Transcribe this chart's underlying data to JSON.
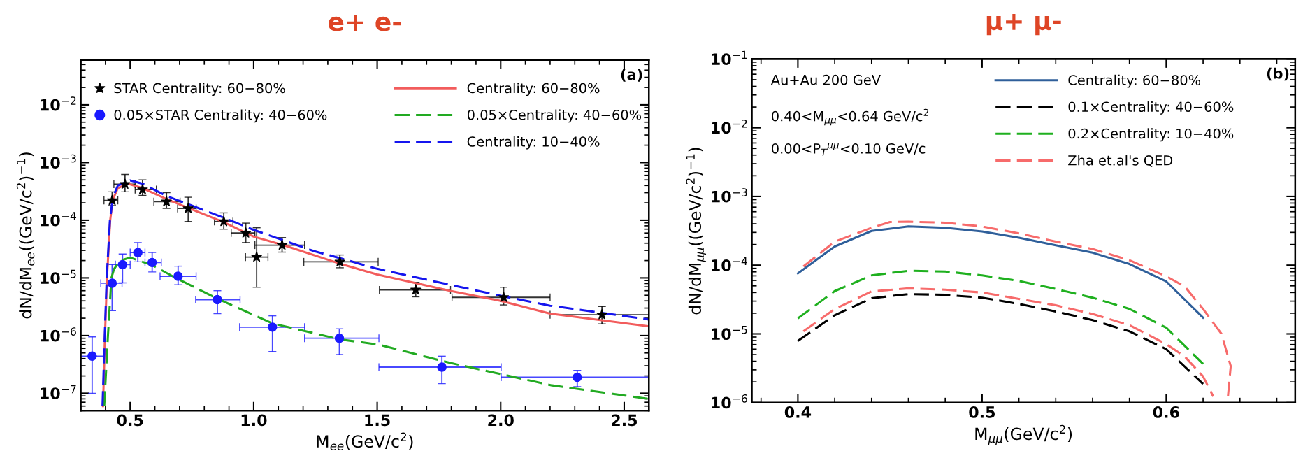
{
  "chart_data": [
    {
      "type": "line",
      "title": "e+ e-",
      "xlabel": "M$_{ee}$(GeV/c$^{2}$)",
      "ylabel": "dN/dM$_{ee}$((GeV/c$^{2}$)$^{−1}$)",
      "log": "y",
      "legend": "top",
      "xlim": [
        0.3,
        2.6
      ],
      "ylim": [
        5e-08,
        0.06
      ],
      "xticks": [
        {
          "value": 0.3,
          "label": null
        },
        {
          "value": 0.4,
          "label": null
        },
        0.5,
        {
          "value": 0.6,
          "label": null
        },
        {
          "value": 0.7,
          "label": null
        },
        {
          "value": 0.8,
          "label": null
        },
        {
          "value": 0.9,
          "label": null
        },
        {
          "value": 1.0,
          "label": "1.0"
        },
        {
          "value": 1.1,
          "label": null
        },
        {
          "value": 1.2,
          "label": null
        },
        {
          "value": 1.3,
          "label": null
        },
        {
          "value": 1.4,
          "label": null
        },
        1.5,
        {
          "value": 1.6,
          "label": null
        },
        {
          "value": 1.7,
          "label": null
        },
        {
          "value": 1.8,
          "label": null
        },
        {
          "value": 1.9,
          "label": null
        },
        {
          "value": 2.0,
          "label": "2.0"
        },
        {
          "value": 2.1,
          "label": null
        },
        {
          "value": 2.2,
          "label": null
        },
        {
          "value": 2.3,
          "label": null
        },
        {
          "value": 2.4,
          "label": null
        },
        2.5,
        {
          "value": 2.6,
          "label": null
        }
      ],
      "yticks": [
        {
          "value": 1e-07,
          "label": "10$^{−7}$"
        },
        {
          "value": 1e-06,
          "label": "10$^{−6}$"
        },
        {
          "value": 1e-05,
          "label": "10$^{−5}$"
        },
        {
          "value": 0.0001,
          "label": "10$^{−4}$"
        },
        {
          "value": 0.001,
          "label": "10$^{−3}$"
        },
        {
          "value": 0.01,
          "label": "10$^{−2}$"
        }
      ],
      "annotations": [
        "(a)"
      ],
      "series": [
        {
          "name": "STAR Centrality: 60−80%",
          "type": "scatter",
          "marker": "star",
          "color": "#000000",
          "x": [
            0.427,
            0.479,
            0.55,
            0.647,
            0.735,
            0.879,
            0.968,
            1.012,
            1.115,
            1.349,
            1.656,
            2.012,
            2.41
          ],
          "values": [
            0.00022,
            0.00042,
            0.00034,
            0.00021,
            0.00016,
            9.5e-05,
            6e-05,
            2.3e-05,
            3.7e-05,
            1.9e-05,
            6.2e-06,
            4.6e-06,
            2.3e-06
          ],
          "errors": [
            [
              0.00018,
              0.00031
            ],
            [
              0.00031,
              0.00062
            ],
            [
              0.00027,
              0.0005
            ],
            [
              0.00016,
              0.0003
            ],
            [
              9.5e-05,
              0.00025
            ],
            [
              7e-05,
              0.000134
            ],
            [
              4.1e-05,
              8.9e-05
            ],
            [
              6.9e-06,
              7.4e-05
            ],
            [
              2.8e-05,
              5e-05
            ],
            [
              1.5e-05,
              2.5e-05
            ],
            [
              4.7e-06,
              8.4e-06
            ],
            [
              3.4e-06,
              6.9e-06
            ],
            [
              1.6e-06,
              3.2e-06
            ]
          ],
          "xerrors": [
            [
              0.394,
              0.45
            ],
            [
              0.434,
              0.52
            ],
            [
              0.52,
              0.606
            ],
            [
              0.596,
              0.702
            ],
            [
              0.692,
              0.767
            ],
            [
              0.841,
              0.916
            ],
            [
              0.909,
              1.005
            ],
            [
              0.967,
              1.058
            ],
            [
              1.005,
              1.206
            ],
            [
              1.203,
              1.504
            ],
            [
              1.509,
              1.797
            ],
            [
              1.803,
              2.2
            ],
            [
              2.2,
              2.6
            ]
          ]
        },
        {
          "name": "0.05×STAR Centrality: 40−60%",
          "type": "scatter",
          "marker": "circle",
          "color": "#1a1aff",
          "x": [
            0.346,
            0.427,
            0.469,
            0.531,
            0.589,
            0.694,
            0.853,
            1.076,
            1.347,
            1.762,
            2.31
          ],
          "values": [
            4.4e-07,
            8.1e-06,
            1.7e-05,
            2.75e-05,
            1.85e-05,
            1.07e-05,
            4.2e-06,
            1.4e-06,
            9e-07,
            2.84e-07,
            1.9e-07
          ],
          "errors": [
            [
              1e-07,
              9.5e-07
            ],
            [
              2.7e-06,
              1.7e-05
            ],
            [
              8.2e-06,
              2.6e-05
            ],
            [
              1.9e-05,
              4.1e-05
            ],
            [
              1.27e-05,
              2.75e-05
            ],
            [
              7.6e-06,
              1.6e-05
            ],
            [
              2.4e-06,
              6e-06
            ],
            [
              5.3e-07,
              2.2e-06
            ],
            [
              4.7e-07,
              1.31e-06
            ],
            [
              1.47e-07,
              4.4e-07
            ],
            [
              1.3e-07,
              2.5e-07
            ]
          ],
          "xerrors": [
            [
              0.3,
              0.394
            ],
            [
              0.381,
              0.467
            ],
            [
              0.44,
              0.5
            ],
            [
              0.5,
              0.56
            ],
            [
              0.56,
              0.626
            ],
            [
              0.621,
              0.767
            ],
            [
              0.765,
              0.945
            ],
            [
              0.943,
              1.206
            ],
            [
              1.206,
              1.507
            ],
            [
              1.507,
              2.002
            ],
            [
              2.002,
              2.6
            ]
          ]
        },
        {
          "name": "Centrality: 60−80%",
          "line_style": "solid",
          "color": "#f25c5c",
          "x": [
            0.39,
            0.398,
            0.406,
            0.419,
            0.43,
            0.45,
            0.49,
            0.55,
            0.65,
            0.74,
            0.88,
            1.0,
            1.12,
            1.35,
            1.5,
            1.8,
            2.0,
            2.2,
            2.6
          ],
          "values": [
            6e-08,
            1e-06,
            1e-05,
            0.0001,
            0.00023,
            0.00036,
            0.00043,
            0.00036,
            0.00023,
            0.00016,
            9.2e-05,
            5.2e-05,
            3.7e-05,
            1.76e-05,
            1.15e-05,
            5.9e-06,
            4e-06,
            2.4e-06,
            1.45e-06
          ]
        },
        {
          "name": "0.05×Centrality: 40−60%",
          "line_style": "dashed",
          "color": "#22aa22",
          "x": [
            0.395,
            0.41,
            0.424,
            0.435,
            0.46,
            0.5,
            0.589,
            0.69,
            0.852,
            1.075,
            1.349,
            1.504,
            1.797,
            2.0,
            2.208,
            2.6
          ],
          "values": [
            6e-08,
            1e-06,
            1e-05,
            1.44e-05,
            2e-05,
            2.25e-05,
            1.67e-05,
            9.7e-06,
            4.4e-06,
            1.63e-06,
            8.6e-07,
            7e-07,
            3.35e-07,
            2.15e-07,
            1.37e-07,
            8e-08
          ]
        },
        {
          "name": "Centrality: 10−40%",
          "line_style": "dashed",
          "color": "#1515ee",
          "x": [
            0.388,
            0.397,
            0.405,
            0.418,
            0.43,
            0.45,
            0.5,
            0.55,
            0.65,
            0.88,
            1.0,
            1.246,
            1.35,
            1.5,
            1.8,
            2.0,
            2.2,
            2.6
          ],
          "values": [
            6e-08,
            1e-06,
            1e-05,
            0.0001,
            0.00025,
            0.0004,
            0.00049,
            0.00043,
            0.00026,
            0.00011,
            6.8e-05,
            2.9e-05,
            2.2e-05,
            1.44e-05,
            7.5e-06,
            4.9e-06,
            3.3e-06,
            1.9e-06
          ]
        }
      ]
    },
    {
      "type": "line",
      "title": "μ+ μ-",
      "xlabel": "M$_{μμ}$(GeV/c$^{2}$)",
      "ylabel": "dN/dM$_{μμ}$((GeV/c$^{2}$)$^{−1}$)",
      "log": "y",
      "legend": "top right",
      "xlim": [
        0.375,
        0.67
      ],
      "ylim": [
        1e-06,
        0.1
      ],
      "xticks": [
        {
          "value": 0.38,
          "label": null
        },
        0.4,
        {
          "value": 0.42,
          "label": null
        },
        {
          "value": 0.44,
          "label": null
        },
        {
          "value": 0.46,
          "label": null
        },
        {
          "value": 0.48,
          "label": null
        },
        0.5,
        {
          "value": 0.52,
          "label": null
        },
        {
          "value": 0.54,
          "label": null
        },
        {
          "value": 0.56,
          "label": null
        },
        {
          "value": 0.58,
          "label": null
        },
        0.6,
        {
          "value": 0.62,
          "label": null
        },
        {
          "value": 0.64,
          "label": null
        },
        {
          "value": 0.66,
          "label": null
        }
      ],
      "yticks": [
        {
          "value": 1e-06,
          "label": "10$^{−6}$"
        },
        {
          "value": 1e-05,
          "label": "10$^{−5}$"
        },
        {
          "value": 0.0001,
          "label": "10$^{−4}$"
        },
        {
          "value": 0.001,
          "label": "10$^{−3}$"
        },
        {
          "value": 0.01,
          "label": "10$^{−2}$"
        },
        {
          "value": 0.1,
          "label": "10$^{−1}$"
        }
      ],
      "annotations": [
        "(b)",
        "Au+Au 200 GeV",
        "0.40<M$_{μμ}$<0.64 GeV/c$^{2}$",
        "0.00<P$_{T}$$^{μμ}$<0.10 GeV/c"
      ],
      "series": [
        {
          "name": "Centrality: 60−80%",
          "line_style": "solid",
          "color": "#2f5f9a",
          "x": [
            0.4,
            0.42,
            0.44,
            0.46,
            0.48,
            0.5,
            0.52,
            0.54,
            0.56,
            0.58,
            0.6,
            0.62
          ],
          "values": [
            7.6e-05,
            0.000187,
            0.000315,
            0.000366,
            0.00035,
            0.00031,
            0.00025,
            0.000195,
            0.000152,
            0.000104,
            5.8e-05,
            1.72e-05
          ]
        },
        {
          "name": "0.1×Centrality: 40−60%",
          "line_style": "dashed",
          "color": "#000000",
          "x": [
            0.4,
            0.42,
            0.44,
            0.46,
            0.48,
            0.5,
            0.52,
            0.54,
            0.56,
            0.58,
            0.6,
            0.62
          ],
          "values": [
            7.9e-06,
            1.87e-05,
            3.3e-05,
            3.8e-05,
            3.7e-05,
            3.36e-05,
            2.73e-05,
            2.12e-05,
            1.59e-05,
            1.09e-05,
            6e-06,
            1.87e-06
          ]
        },
        {
          "name": "0.2×Centrality: 10−40%",
          "line_style": "dashed",
          "color": "#1fb01f",
          "x": [
            0.4,
            0.42,
            0.44,
            0.46,
            0.48,
            0.5,
            0.52,
            0.54,
            0.56,
            0.58,
            0.6,
            0.62
          ],
          "values": [
            1.68e-05,
            4.2e-05,
            7.1e-05,
            8.3e-05,
            8.1e-05,
            7.1e-05,
            5.9e-05,
            4.5e-05,
            3.37e-05,
            2.31e-05,
            1.23e-05,
            3.66e-06
          ]
        },
        {
          "name": "Zha et.al's QED",
          "line_style": "dashed",
          "color": "#f76b6b",
          "x": [
            0.403,
            0.42,
            0.44,
            0.45,
            0.46,
            0.48,
            0.5,
            0.52,
            0.54,
            0.56,
            0.58,
            0.6,
            0.61,
            0.62,
            0.63,
            0.635,
            0.6335
          ],
          "values": [
            9.6e-05,
            0.00022,
            0.00035,
            0.000425,
            0.00043,
            0.000415,
            0.000366,
            0.00029,
            0.00022,
            0.000172,
            0.000118,
            6.9e-05,
            4.9e-05,
            2.3e-05,
            1e-05,
            3.4e-06,
            1.23e-06
          ]
        },
        {
          "line_style": "dashed",
          "color": "#f76b6b",
          "x": [
            0.403,
            0.42,
            0.44,
            0.46,
            0.48,
            0.5,
            0.52,
            0.54,
            0.56,
            0.58,
            0.6,
            0.61,
            0.62,
            0.6255
          ],
          "values": [
            1.09e-05,
            2.3e-05,
            4.15e-05,
            4.6e-05,
            4.4e-05,
            4e-05,
            3.23e-05,
            2.61e-05,
            1.95e-05,
            1.34e-05,
            7.1e-06,
            4.7e-06,
            2.4e-06,
            1.23e-06
          ]
        }
      ]
    }
  ]
}
